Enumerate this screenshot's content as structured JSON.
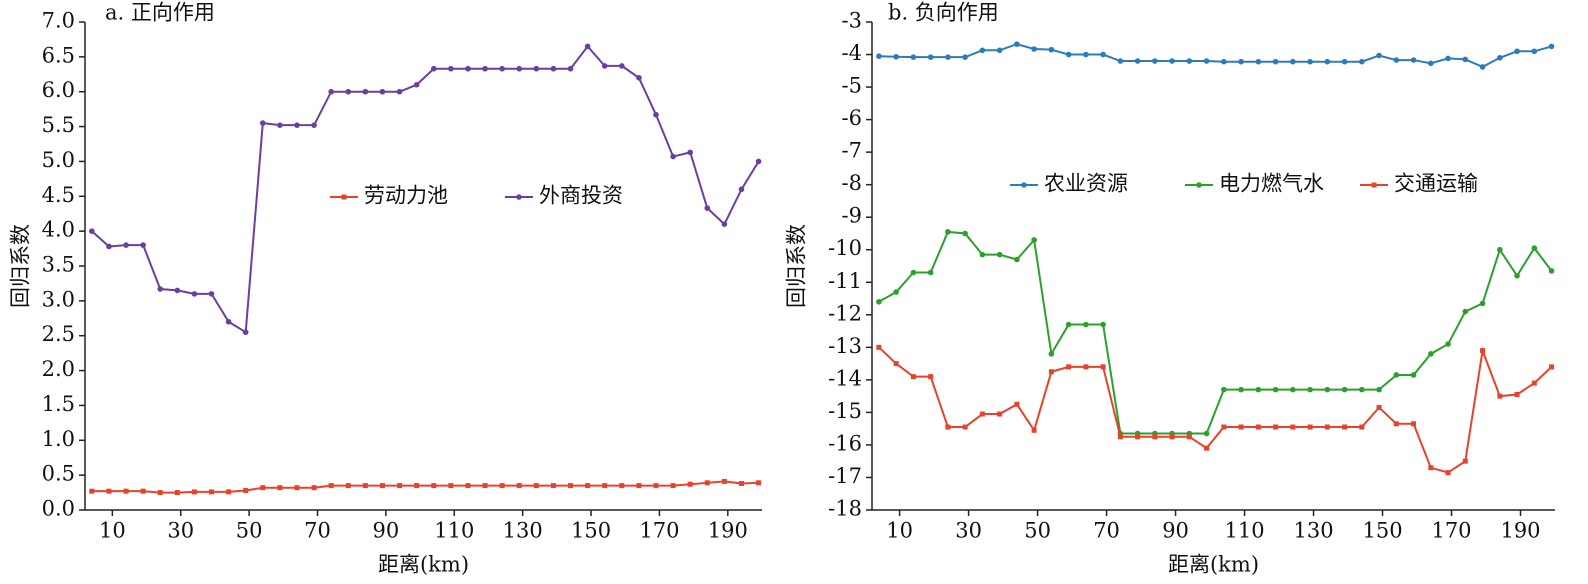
{
  "chart_data": [
    {
      "type": "line",
      "title": "a. 正向作用",
      "xlabel": "距离(km)",
      "ylabel": "回归系数",
      "x": [
        4,
        9,
        14,
        19,
        24,
        29,
        34,
        39,
        44,
        49,
        54,
        59,
        64,
        69,
        74,
        79,
        84,
        89,
        94,
        99,
        104,
        109,
        114,
        119,
        124,
        129,
        134,
        139,
        144,
        149,
        154,
        159,
        164,
        169,
        174,
        179,
        184,
        189,
        194,
        199
      ],
      "xlim": [
        2,
        200
      ],
      "xticks": [
        10,
        30,
        50,
        70,
        90,
        110,
        130,
        150,
        170,
        190
      ],
      "ylim": [
        0,
        7
      ],
      "yticks": [
        {
          "value": 0,
          "label": "0.0"
        },
        0.5,
        {
          "value": 1,
          "label": "1.0"
        },
        1.5,
        {
          "value": 2,
          "label": "2.0"
        },
        2.5,
        {
          "value": 3,
          "label": "3.0"
        },
        3.5,
        {
          "value": 4,
          "label": "4.0"
        },
        4.5,
        {
          "value": 5,
          "label": "5.0"
        },
        5.5,
        {
          "value": 6,
          "label": "6.0"
        },
        6.5,
        {
          "value": 7,
          "label": "7.0"
        }
      ],
      "series": [
        {
          "name": "劳动力池",
          "color": "#e8412c",
          "marker": "square",
          "values": [
            0.27,
            0.27,
            0.27,
            0.27,
            0.25,
            0.25,
            0.26,
            0.26,
            0.26,
            0.28,
            0.32,
            0.32,
            0.32,
            0.32,
            0.35,
            0.35,
            0.35,
            0.35,
            0.35,
            0.35,
            0.35,
            0.35,
            0.35,
            0.35,
            0.35,
            0.35,
            0.35,
            0.35,
            0.35,
            0.35,
            0.35,
            0.35,
            0.35,
            0.35,
            0.35,
            0.37,
            0.39,
            0.41,
            0.38,
            0.39
          ]
        },
        {
          "name": "外商投资",
          "color": "#6a3fa0",
          "marker": "circle",
          "values": [
            4.0,
            3.78,
            3.8,
            3.8,
            3.17,
            3.15,
            3.1,
            3.1,
            2.7,
            2.55,
            5.55,
            5.52,
            5.52,
            5.52,
            6.0,
            6.0,
            6.0,
            6.0,
            6.0,
            6.1,
            6.33,
            6.33,
            6.33,
            6.33,
            6.33,
            6.33,
            6.33,
            6.33,
            6.33,
            6.65,
            6.37,
            6.37,
            6.2,
            5.67,
            5.07,
            5.13,
            4.33,
            4.1,
            4.6,
            5.0
          ]
        }
      ]
    },
    {
      "type": "line",
      "title": "b. 负向作用",
      "xlabel": "距离(km)",
      "ylabel": "回归系数",
      "x": [
        4,
        9,
        14,
        19,
        24,
        29,
        34,
        39,
        44,
        49,
        54,
        59,
        64,
        69,
        74,
        79,
        84,
        89,
        94,
        99,
        104,
        109,
        114,
        119,
        124,
        129,
        134,
        139,
        144,
        149,
        154,
        159,
        164,
        169,
        174,
        179,
        184,
        189,
        194,
        199
      ],
      "xlim": [
        2,
        200
      ],
      "xticks": [
        10,
        30,
        50,
        70,
        90,
        110,
        130,
        150,
        170,
        190
      ],
      "ylim": [
        -18,
        -3
      ],
      "yticks": [
        -18,
        -17,
        -16,
        -15,
        -14,
        -13,
        -12,
        -11,
        -10,
        -9,
        -8,
        -7,
        -6,
        -5,
        -4,
        -3
      ],
      "series": [
        {
          "name": "农业资源",
          "color": "#2b7bbf",
          "marker": "circle",
          "values": [
            -4.05,
            -4.07,
            -4.08,
            -4.08,
            -4.08,
            -4.08,
            -3.87,
            -3.87,
            -3.68,
            -3.83,
            -3.85,
            -4.0,
            -4.0,
            -4.0,
            -4.2,
            -4.2,
            -4.2,
            -4.2,
            -4.2,
            -4.2,
            -4.22,
            -4.22,
            -4.22,
            -4.22,
            -4.22,
            -4.22,
            -4.22,
            -4.22,
            -4.22,
            -4.03,
            -4.17,
            -4.17,
            -4.27,
            -4.12,
            -4.15,
            -4.38,
            -4.1,
            -3.9,
            -3.9,
            -3.75
          ]
        },
        {
          "name": "电力燃气水",
          "color": "#2ca02c",
          "marker": "circle",
          "values": [
            -11.6,
            -11.3,
            -10.7,
            -10.7,
            -9.45,
            -9.5,
            -10.15,
            -10.15,
            -10.3,
            -9.7,
            -13.2,
            -12.3,
            -12.3,
            -12.3,
            -15.65,
            -15.65,
            -15.65,
            -15.65,
            -15.65,
            -15.65,
            -14.3,
            -14.3,
            -14.3,
            -14.3,
            -14.3,
            -14.3,
            -14.3,
            -14.3,
            -14.3,
            -14.3,
            -13.85,
            -13.85,
            -13.2,
            -12.9,
            -11.9,
            -11.65,
            -10.0,
            -10.8,
            -9.95,
            -10.65
          ]
        },
        {
          "name": "交通运输",
          "color": "#e8412c",
          "marker": "square",
          "values": [
            -13.0,
            -13.5,
            -13.9,
            -13.9,
            -15.45,
            -15.45,
            -15.05,
            -15.05,
            -14.75,
            -15.55,
            -13.75,
            -13.6,
            -13.6,
            -13.6,
            -15.75,
            -15.75,
            -15.75,
            -15.75,
            -15.75,
            -16.1,
            -15.45,
            -15.45,
            -15.45,
            -15.45,
            -15.45,
            -15.45,
            -15.45,
            -15.45,
            -15.45,
            -14.85,
            -15.35,
            -15.35,
            -16.7,
            -16.85,
            -16.5,
            -13.1,
            -14.5,
            -14.45,
            -14.1,
            -13.6
          ]
        }
      ]
    }
  ]
}
